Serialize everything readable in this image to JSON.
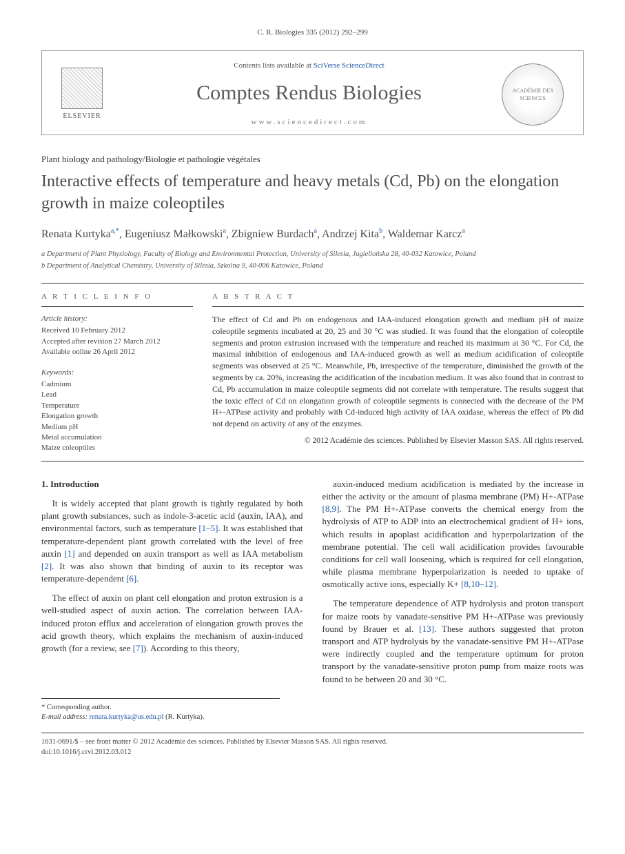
{
  "header_citation": "C. R. Biologies 335 (2012) 292–299",
  "masthead": {
    "contents_prefix": "Contents lists available at ",
    "contents_link": "SciVerse ScienceDirect",
    "journal": "Comptes Rendus Biologies",
    "url": "www.sciencedirect.com",
    "publisher_brand": "ELSEVIER"
  },
  "section_label": "Plant biology and pathology/Biologie et pathologie végétales",
  "title": "Interactive effects of temperature and heavy metals (Cd, Pb) on the elongation growth in maize coleoptiles",
  "authors_html": "Renata Kurtyka<span class='sup'>a,*</span>, Eugeniusz Małkowski<span class='sup'>a</span>, Zbigniew Burdach<span class='sup'>a</span>, Andrzej Kita<span class='sup'>b</span>, Waldemar Karcz<span class='sup'>a</span>",
  "affiliations": [
    "a Department of Plant Physiology, Faculty of Biology and Environmental Protection, University of Silesia, Jagiellońska 28, 40-032 Katowice, Poland",
    "b Department of Analytical Chemistry, University of Silesia, Szkolna 9, 40-006 Katowice, Poland"
  ],
  "article_info": {
    "head": "A R T I C L E   I N F O",
    "history_head": "Article history:",
    "history": [
      "Received 10 February 2012",
      "Accepted after revision 27 March 2012",
      "Available online 26 April 2012"
    ],
    "keywords_head": "Keywords:",
    "keywords": [
      "Cadmium",
      "Lead",
      "Temperature",
      "Elongation growth",
      "Medium pH",
      "Metal accumulation",
      "Maize coleoptiles"
    ]
  },
  "abstract": {
    "head": "A B S T R A C T",
    "text": "The effect of Cd and Pb on endogenous and IAA-induced elongation growth and medium pH of maize coleoptile segments incubated at 20, 25 and 30 °C was studied. It was found that the elongation of coleoptile segments and proton extrusion increased with the temperature and reached its maximum at 30 °C. For Cd, the maximal inhibition of endogenous and IAA-induced growth as well as medium acidification of coleoptile segments was observed at 25 °C. Meanwhile, Pb, irrespective of the temperature, diminished the growth of the segments by ca. 20%, increasing the acidification of the incubation medium. It was also found that in contrast to Cd, Pb accumulation in maize coleoptile segments did not correlate with temperature. The results suggest that the toxic effect of Cd on elongation growth of coleoptile segments is connected with the decrease of the PM H+-ATPase activity and probably with Cd-induced high activity of IAA oxidase, whereas the effect of Pb did not depend on activity of any of the enzymes.",
    "copyright": "© 2012 Académie des sciences. Published by Elsevier Masson SAS. All rights reserved."
  },
  "body": {
    "section1_head": "1. Introduction",
    "p1": "It is widely accepted that plant growth is tightly regulated by both plant growth substances, such as indole-3-acetic acid (auxin, IAA), and environmental factors, such as temperature [1–5]. It was established that temperature-dependent plant growth correlated with the level of free auxin [1] and depended on auxin transport as well as IAA metabolism [2]. It was also shown that binding of auxin to its receptor was temperature-dependent [6].",
    "p2": "The effect of auxin on plant cell elongation and proton extrusion is a well-studied aspect of auxin action. The correlation between IAA-induced proton efflux and acceleration of elongation growth proves the acid growth theory, which explains the mechanism of auxin-induced growth (for a review, see [7]). According to this theory,",
    "p3": "auxin-induced medium acidification is mediated by the increase in either the activity or the amount of plasma membrane (PM) H+-ATPase [8,9]. The PM H+-ATPase converts the chemical energy from the hydrolysis of ATP to ADP into an electrochemical gradient of H+ ions, which results in apoplast acidification and hyperpolarization of the membrane potential. The cell wall acidification provides favourable conditions for cell wall loosening, which is required for cell elongation, while plasma membrane hyperpolarization is needed to uptake of osmotically active ions, especially K+ [8,10–12].",
    "p4": "The temperature dependence of ATP hydrolysis and proton transport for maize roots by vanadate-sensitive PM H+-ATPase was previously found by Brauer et al. [13]. These authors suggested that proton transport and ATP hydrolysis by the vanadate-sensitive PM H+-ATPase were indirectly coupled and the temperature optimum for proton transport by the vanadate-sensitive proton pump from maize roots was found to be between 20 and 30 °C."
  },
  "corresponding": {
    "label": "* Corresponding author.",
    "email_label": "E-mail address: ",
    "email": "renata.kurtyka@us.edu.pl",
    "email_suffix": " (R. Kurtyka)."
  },
  "footer": {
    "line1": "1631-0691/$ – see front matter © 2012 Académie des sciences. Published by Elsevier Masson SAS. All rights reserved.",
    "line2": "doi:10.1016/j.crvi.2012.03.012"
  },
  "colors": {
    "link": "#2158a8",
    "text": "#333333",
    "muted": "#555555",
    "rule": "#333333"
  },
  "typography": {
    "title_fontsize": 24,
    "journal_fontsize": 30,
    "body_fontsize": 13,
    "abstract_fontsize": 12,
    "small_fontsize": 11
  }
}
